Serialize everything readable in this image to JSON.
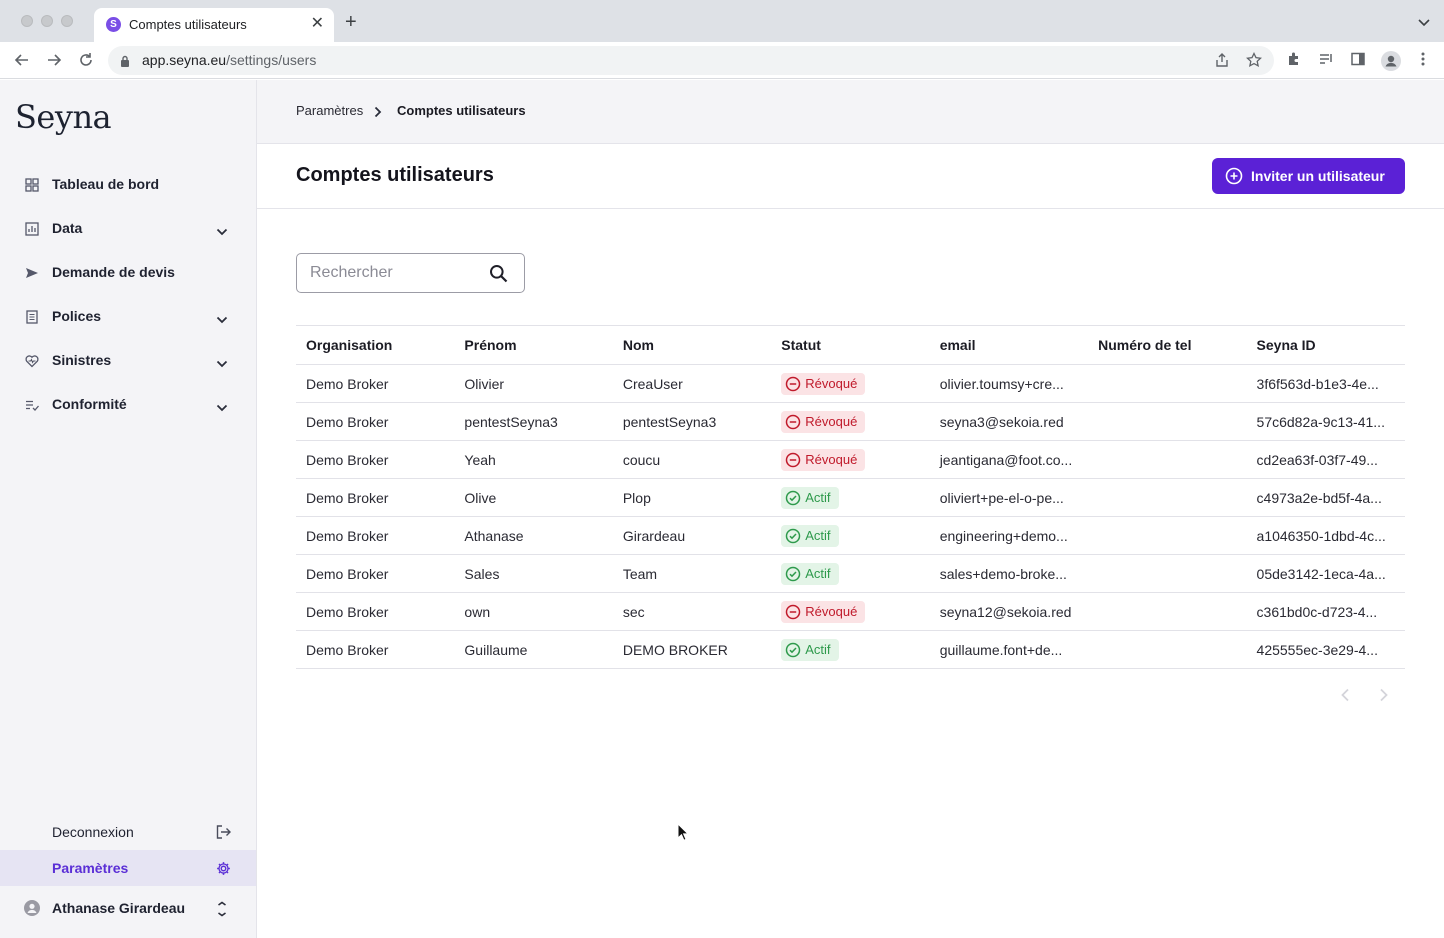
{
  "browser": {
    "tab_title": "Comptes utilisateurs",
    "tab_favicon_letter": "S",
    "url_host": "app.seyna.eu",
    "url_path": "/settings/users"
  },
  "sidebar": {
    "logo": "Seyna",
    "items": [
      {
        "label": "Tableau de bord",
        "icon": "dashboard-icon",
        "expandable": false
      },
      {
        "label": "Data",
        "icon": "chart-icon",
        "expandable": true
      },
      {
        "label": "Demande de devis",
        "icon": "send-icon",
        "expandable": false
      },
      {
        "label": "Polices",
        "icon": "document-icon",
        "expandable": true
      },
      {
        "label": "Sinistres",
        "icon": "heart-icon",
        "expandable": true
      },
      {
        "label": "Conformité",
        "icon": "checklist-icon",
        "expandable": true
      }
    ],
    "logout_label": "Deconnexion",
    "settings_label": "Paramètres",
    "user_name": "Athanase Girardeau"
  },
  "breadcrumb": {
    "parent": "Paramètres",
    "current": "Comptes utilisateurs"
  },
  "header": {
    "title": "Comptes utilisateurs",
    "invite_label": "Inviter un utilisateur"
  },
  "search": {
    "placeholder": "Rechercher",
    "value": ""
  },
  "table": {
    "columns": [
      "Organisation",
      "Prénom",
      "Nom",
      "Statut",
      "email",
      "Numéro de tel",
      "Seyna ID"
    ],
    "rows": [
      {
        "org": "Demo Broker",
        "first": "Olivier",
        "last": "CreaUser",
        "status": "Révoqué",
        "email": "olivier.toumsy+cre...",
        "phone": "",
        "id": "3f6f563d-b1e3-4e..."
      },
      {
        "org": "Demo Broker",
        "first": "pentestSeyna3",
        "last": "pentestSeyna3",
        "status": "Révoqué",
        "email": "seyna3@sekoia.red",
        "phone": "",
        "id": "57c6d82a-9c13-41..."
      },
      {
        "org": "Demo Broker",
        "first": "Yeah",
        "last": "coucu",
        "status": "Révoqué",
        "email": "jeantigana@foot.co...",
        "phone": "",
        "id": "cd2ea63f-03f7-49..."
      },
      {
        "org": "Demo Broker",
        "first": "Olive",
        "last": "Plop",
        "status": "Actif",
        "email": "oliviert+pe-el-o-pe...",
        "phone": "",
        "id": "c4973a2e-bd5f-4a..."
      },
      {
        "org": "Demo Broker",
        "first": "Athanase",
        "last": "Girardeau",
        "status": "Actif",
        "email": "engineering+demo...",
        "phone": "",
        "id": "a1046350-1dbd-4c..."
      },
      {
        "org": "Demo Broker",
        "first": "Sales",
        "last": "Team",
        "status": "Actif",
        "email": "sales+demo-broke...",
        "phone": "",
        "id": "05de3142-1eca-4a..."
      },
      {
        "org": "Demo Broker",
        "first": "own",
        "last": "sec",
        "status": "Révoqué",
        "email": "seyna12@sekoia.red",
        "phone": "",
        "id": "c361bd0c-d723-4..."
      },
      {
        "org": "Demo Broker",
        "first": "Guillaume",
        "last": "DEMO BROKER",
        "status": "Actif",
        "email": "guillaume.font+de...",
        "phone": "",
        "id": "425555ec-3e29-4..."
      }
    ]
  },
  "colors": {
    "accent": "#5b21d6",
    "revoked_bg": "#fbe3e5",
    "revoked_fg": "#c01a2b",
    "active_bg": "#e3f4e7",
    "active_fg": "#2e9a4c"
  }
}
